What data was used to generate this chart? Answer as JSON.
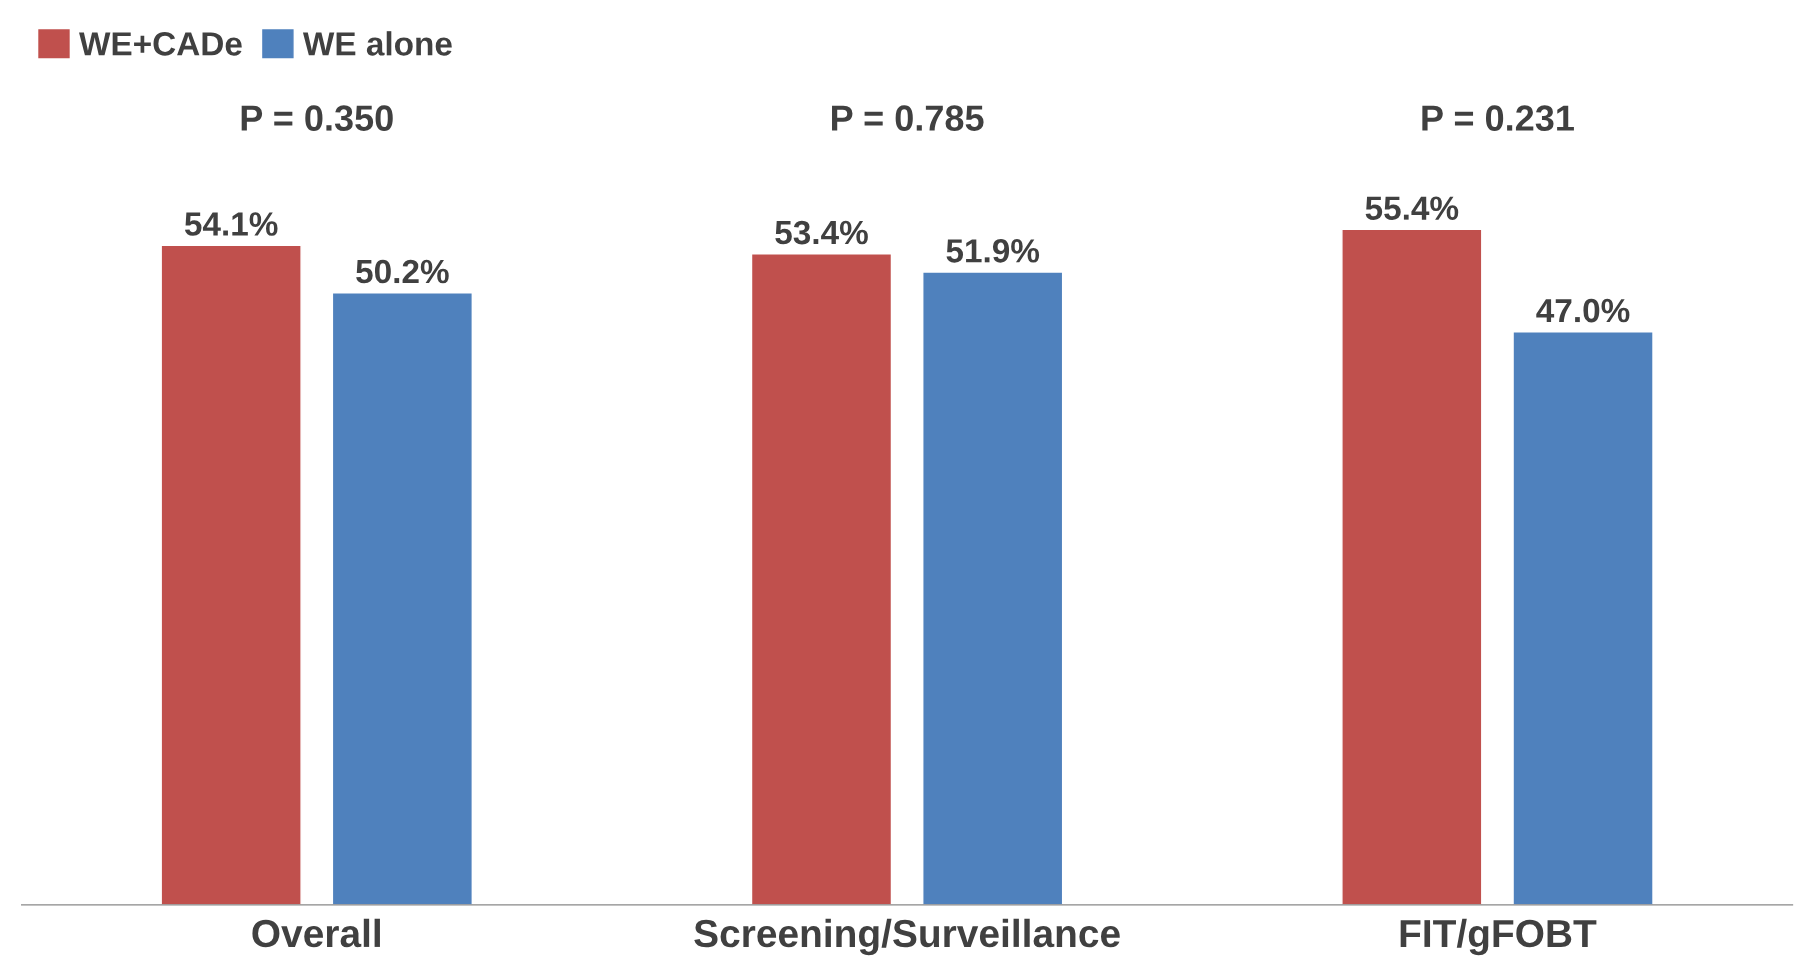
{
  "chart_data": {
    "type": "bar",
    "categories": [
      "Overall",
      "Screening/Surveillance",
      "FIT/gFOBT"
    ],
    "series": [
      {
        "name": "WE+CADe",
        "color": "#c0504d",
        "values": [
          54.1,
          53.4,
          55.4
        ],
        "value_labels": [
          "54.1%",
          "53.4%",
          "55.4%"
        ]
      },
      {
        "name": "WE alone",
        "color": "#4f81bd",
        "values": [
          50.2,
          51.9,
          47.0
        ],
        "value_labels": [
          "50.2%",
          "51.9%",
          "47.0%"
        ]
      }
    ],
    "annotations": [
      "P = 0.350",
      "P = 0.785",
      "P = 0.231"
    ],
    "legend": "top left",
    "grid": false,
    "tick_labels": "x"
  }
}
